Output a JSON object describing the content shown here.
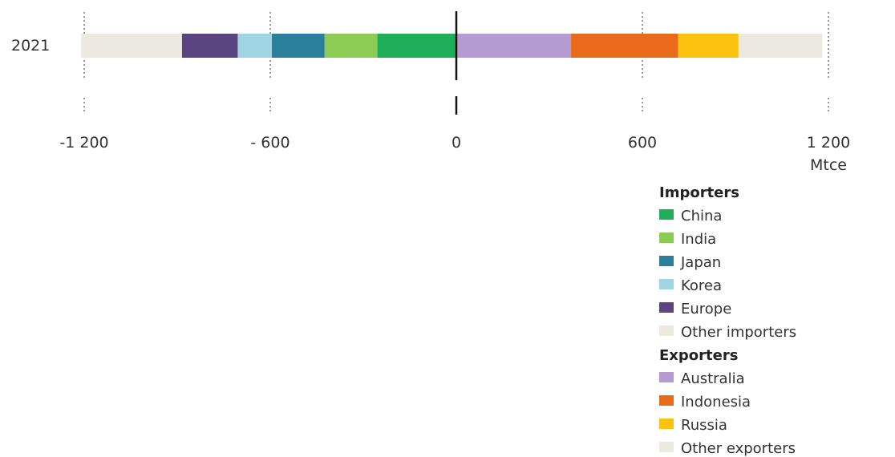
{
  "chart_data": {
    "type": "bar",
    "orientation": "horizontal-stacked-diverging",
    "categories": [
      "2021"
    ],
    "xlim": [
      -1200,
      1200
    ],
    "x_ticks": [
      {
        "value": -1200,
        "label": "-1 200"
      },
      {
        "value": -600,
        "label": "- 600"
      },
      {
        "value": 0,
        "label": "0"
      },
      {
        "value": 600,
        "label": "600"
      },
      {
        "value": 1200,
        "label": "1 200"
      }
    ],
    "unit": "Mtce",
    "series": [
      {
        "name": "China",
        "group": "Importers",
        "value": -255,
        "color": "#1fae5a"
      },
      {
        "name": "India",
        "group": "Importers",
        "value": -170,
        "color": "#8ccc55"
      },
      {
        "name": "Japan",
        "group": "Importers",
        "value": -170,
        "color": "#2a7f9a"
      },
      {
        "name": "Korea",
        "group": "Importers",
        "value": -110,
        "color": "#9fd4e2"
      },
      {
        "name": "Europe",
        "group": "Importers",
        "value": -180,
        "color": "#5a4580"
      },
      {
        "name": "Other importers",
        "group": "Importers",
        "value": -325,
        "color": "#ebe9e0"
      },
      {
        "name": "Australia",
        "group": "Exporters",
        "value": 370,
        "color": "#b49bd1"
      },
      {
        "name": "Indonesia",
        "group": "Exporters",
        "value": 345,
        "color": "#ea6a1c"
      },
      {
        "name": "Russia",
        "group": "Exporters",
        "value": 195,
        "color": "#fbc210"
      },
      {
        "name": "Other exporters",
        "group": "Exporters",
        "value": 270,
        "color": "#ebe9e0"
      }
    ],
    "legend": {
      "placement": "bottom-right",
      "groups": [
        {
          "title": "Importers",
          "items": [
            "China",
            "India",
            "Japan",
            "Korea",
            "Europe",
            "Other importers"
          ]
        },
        {
          "title": "Exporters",
          "items": [
            "Australia",
            "Indonesia",
            "Russia",
            "Other exporters"
          ]
        }
      ]
    },
    "grid": "dotted vertical at ticks"
  }
}
